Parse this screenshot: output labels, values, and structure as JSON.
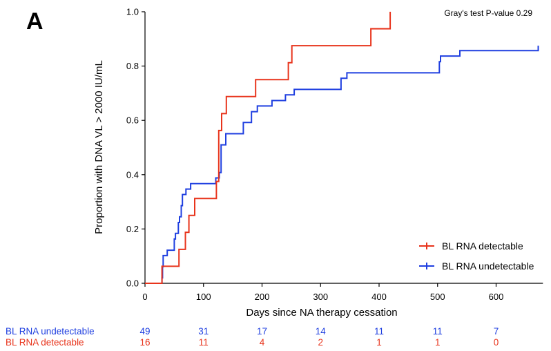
{
  "panel_label": "A",
  "annotation": "Gray's test P-value 0.29",
  "colors": {
    "detectable": "#e8341c",
    "undetectable": "#1f3fe0",
    "axis": "#000000"
  },
  "chart_data": {
    "type": "line",
    "step": true,
    "title": "",
    "xlabel": "Days since NA therapy cessation",
    "ylabel": "Proportion with DNA VL > 2000 IU/mL",
    "xlim": [
      0,
      680
    ],
    "ylim": [
      0,
      1.0
    ],
    "xticks": [
      "0",
      "100",
      "200",
      "300",
      "400",
      "500",
      "600"
    ],
    "yticks": [
      "0.0",
      "0.2",
      "0.4",
      "0.6",
      "0.8",
      "1.0"
    ],
    "grid": false,
    "legend_position": "bottom-right",
    "series": [
      {
        "name": "BL RNA detectable",
        "color_key": "detectable",
        "points": [
          [
            0,
            0
          ],
          [
            29,
            0
          ],
          [
            29,
            0.0625
          ],
          [
            58,
            0.0625
          ],
          [
            58,
            0.125
          ],
          [
            69,
            0.125
          ],
          [
            69,
            0.1875
          ],
          [
            75,
            0.1875
          ],
          [
            75,
            0.25
          ],
          [
            85,
            0.25
          ],
          [
            85,
            0.3125
          ],
          [
            122,
            0.3125
          ],
          [
            122,
            0.375
          ],
          [
            126,
            0.375
          ],
          [
            126,
            0.5625
          ],
          [
            131,
            0.5625
          ],
          [
            131,
            0.625
          ],
          [
            139,
            0.625
          ],
          [
            139,
            0.6875
          ],
          [
            189,
            0.6875
          ],
          [
            189,
            0.75
          ],
          [
            245,
            0.75
          ],
          [
            245,
            0.8125
          ],
          [
            251,
            0.8125
          ],
          [
            251,
            0.875
          ],
          [
            386,
            0.875
          ],
          [
            386,
            0.9375
          ],
          [
            419,
            0.9375
          ],
          [
            419,
            1.0
          ]
        ]
      },
      {
        "name": "BL RNA undetectable",
        "color_key": "undetectable",
        "points": [
          [
            0,
            0
          ],
          [
            29,
            0
          ],
          [
            29,
            0.02
          ],
          [
            30,
            0.02
          ],
          [
            30,
            0.061
          ],
          [
            31,
            0.061
          ],
          [
            31,
            0.102
          ],
          [
            38,
            0.102
          ],
          [
            38,
            0.122
          ],
          [
            50,
            0.122
          ],
          [
            50,
            0.163
          ],
          [
            52,
            0.163
          ],
          [
            52,
            0.184
          ],
          [
            57,
            0.184
          ],
          [
            57,
            0.224
          ],
          [
            59,
            0.224
          ],
          [
            59,
            0.245
          ],
          [
            62,
            0.245
          ],
          [
            62,
            0.286
          ],
          [
            64,
            0.286
          ],
          [
            64,
            0.327
          ],
          [
            70,
            0.327
          ],
          [
            70,
            0.347
          ],
          [
            78,
            0.347
          ],
          [
            78,
            0.367
          ],
          [
            121,
            0.367
          ],
          [
            121,
            0.388
          ],
          [
            127,
            0.388
          ],
          [
            127,
            0.408
          ],
          [
            130,
            0.408
          ],
          [
            130,
            0.51
          ],
          [
            138,
            0.51
          ],
          [
            138,
            0.551
          ],
          [
            168,
            0.551
          ],
          [
            168,
            0.592
          ],
          [
            182,
            0.592
          ],
          [
            182,
            0.632
          ],
          [
            192,
            0.632
          ],
          [
            192,
            0.653
          ],
          [
            217,
            0.653
          ],
          [
            217,
            0.673
          ],
          [
            240,
            0.673
          ],
          [
            240,
            0.694
          ],
          [
            255,
            0.694
          ],
          [
            255,
            0.714
          ],
          [
            335,
            0.714
          ],
          [
            335,
            0.755
          ],
          [
            345,
            0.755
          ],
          [
            345,
            0.775
          ],
          [
            503,
            0.775
          ],
          [
            503,
            0.816
          ],
          [
            505,
            0.816
          ],
          [
            505,
            0.837
          ],
          [
            538,
            0.837
          ],
          [
            538,
            0.857
          ],
          [
            672,
            0.857
          ],
          [
            672,
            0.875
          ]
        ]
      }
    ],
    "risk_table": [
      {
        "label": "BL RNA undetectable",
        "color_key": "undetectable",
        "x": [
          0,
          100,
          200,
          300,
          400,
          500,
          600
        ],
        "counts": [
          "49",
          "31",
          "17",
          "14",
          "11",
          "11",
          "7"
        ]
      },
      {
        "label": "BL RNA detectable",
        "color_key": "detectable",
        "x": [
          0,
          100,
          200,
          300,
          400,
          500,
          600
        ],
        "counts": [
          "16",
          "11",
          "4",
          "2",
          "1",
          "1",
          "0"
        ]
      }
    ]
  }
}
